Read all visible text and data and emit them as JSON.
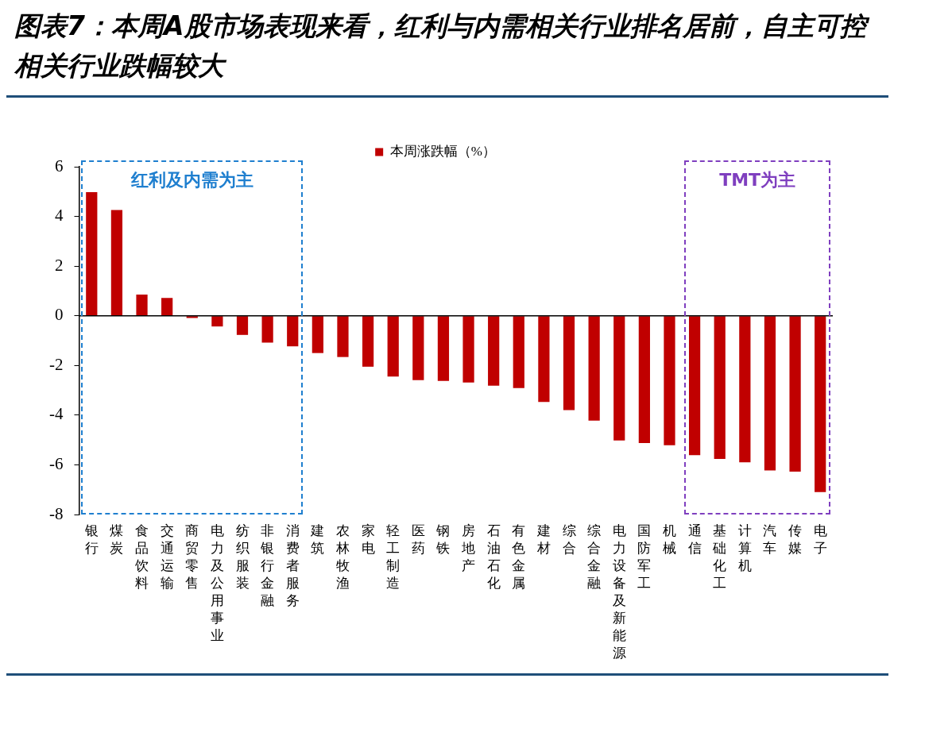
{
  "chart_data": {
    "type": "bar",
    "title": "图表7：本周A股市场表现来看，红利与内需相关行业排名居前，自主可控相关行业跌幅较大",
    "categories": [
      "银行",
      "煤炭",
      "食品饮料",
      "交通运输",
      "商贸零售",
      "电力及公用事业",
      "纺织服装",
      "非银行金融",
      "消费者服务",
      "建筑",
      "农林牧渔",
      "家电",
      "轻工制造",
      "医药",
      "钢铁",
      "房地产",
      "石油石化",
      "有色金属",
      "建材",
      "综合",
      "综合金融",
      "电力设备及新能源",
      "国防军工",
      "机械",
      "通信",
      "基础化工",
      "计算机",
      "汽车",
      "传媒",
      "电子"
    ],
    "series": [
      {
        "name": "本周涨跌幅（%）",
        "color": "#c00000",
        "values": [
          4.98,
          4.26,
          0.85,
          0.72,
          -0.09,
          -0.43,
          -0.77,
          -1.08,
          -1.23,
          -1.5,
          -1.66,
          -2.05,
          -2.45,
          -2.59,
          -2.62,
          -2.69,
          -2.81,
          -2.91,
          -3.47,
          -3.8,
          -4.22,
          -5.02,
          -5.12,
          -5.21,
          -5.61,
          -5.76,
          -5.9,
          -6.23,
          -6.27,
          -7.1
        ]
      }
    ],
    "ylim": [
      -8,
      6
    ],
    "yticks": [
      -8,
      -6,
      -4,
      -2,
      0,
      2,
      4,
      6
    ],
    "legend": "top",
    "annotations": [
      "红利及内需为主",
      "TMT为主"
    ]
  }
}
